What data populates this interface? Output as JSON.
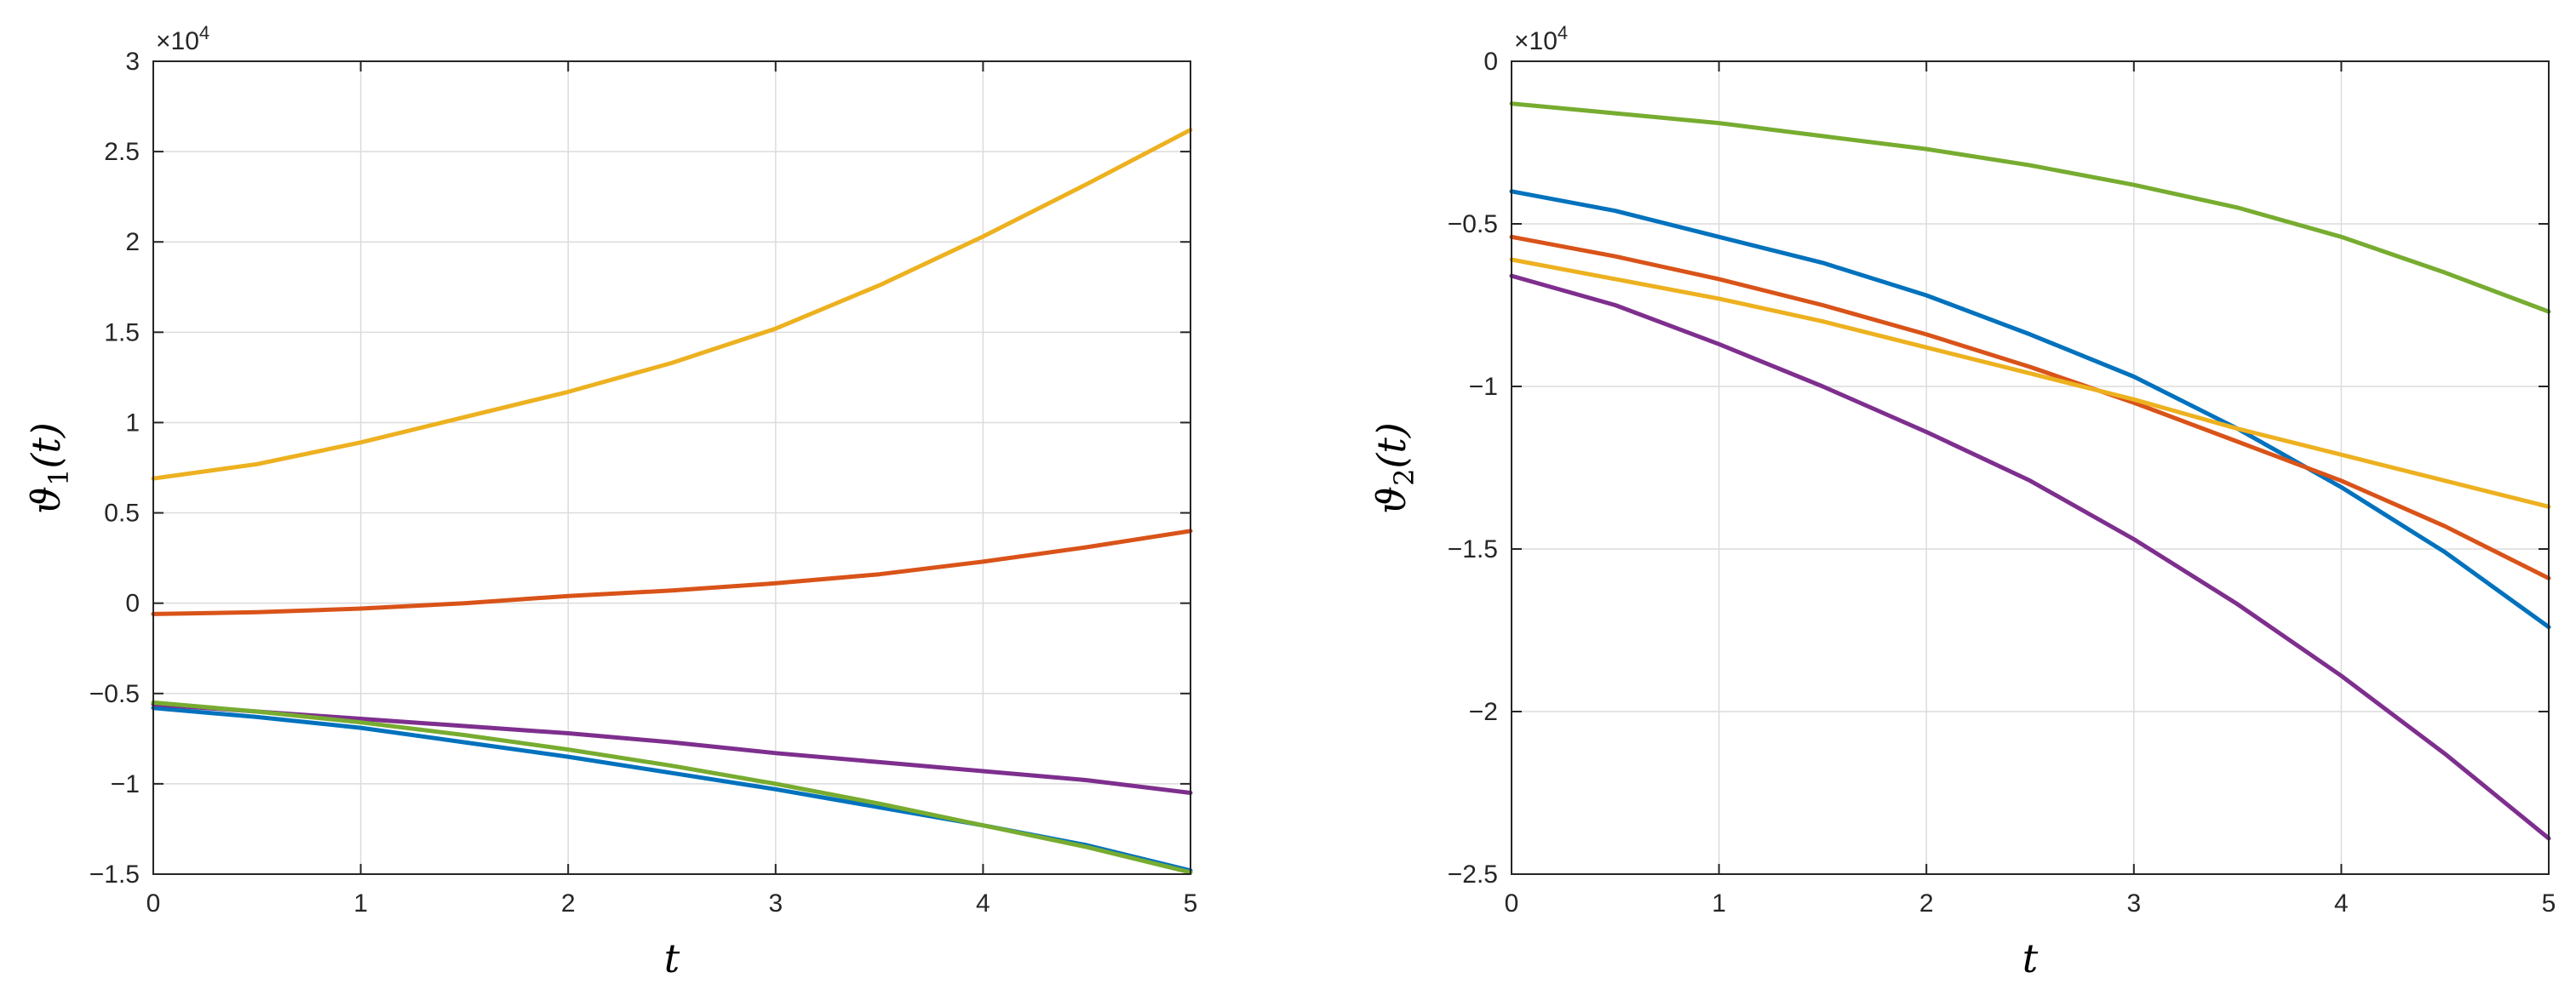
{
  "chart_data": [
    {
      "type": "line",
      "title": "",
      "xlabel": "t",
      "ylabel": "ϑ_1(t)",
      "ylabel_main": "ϑ",
      "ylabel_sub": "1",
      "ylabel_tail": "(t)",
      "xlim": [
        0,
        5
      ],
      "ylim": [
        -15000,
        30000
      ],
      "grid": true,
      "exponent_label": "×10",
      "exponent_power": "4",
      "xticks": [
        0,
        1,
        2,
        3,
        4,
        5
      ],
      "xtick_labels": [
        "0",
        "1",
        "2",
        "3",
        "4",
        "5"
      ],
      "yticks": [
        -15000,
        -10000,
        -5000,
        0,
        5000,
        10000,
        15000,
        20000,
        25000,
        30000
      ],
      "ytick_labels": [
        "−1.5",
        "−1",
        "−0.5",
        "0",
        "0.5",
        "1",
        "1.5",
        "2",
        "2.5",
        "3"
      ],
      "x": [
        0,
        0.5,
        1,
        1.5,
        2,
        2.5,
        3,
        3.5,
        4,
        4.5,
        5
      ],
      "series": [
        {
          "name": "series 1",
          "color": "#0072BD",
          "values": [
            -5800,
            -6300,
            -6900,
            -7700,
            -8500,
            -9400,
            -10300,
            -11300,
            -12300,
            -13400,
            -14800
          ]
        },
        {
          "name": "series 2",
          "color": "#D95319",
          "values": [
            -600,
            -500,
            -300,
            0,
            400,
            700,
            1100,
            1600,
            2300,
            3100,
            4000
          ]
        },
        {
          "name": "series 3",
          "color": "#EDB120",
          "values": [
            6900,
            7700,
            8900,
            10300,
            11700,
            13300,
            15200,
            17600,
            20300,
            23200,
            26200
          ]
        },
        {
          "name": "series 4",
          "color": "#7E2F8E",
          "values": [
            -5600,
            -6000,
            -6400,
            -6800,
            -7200,
            -7700,
            -8300,
            -8800,
            -9300,
            -9800,
            -10500
          ]
        },
        {
          "name": "series 5",
          "color": "#77AC30",
          "values": [
            -5500,
            -6000,
            -6600,
            -7300,
            -8100,
            -9000,
            -10000,
            -11100,
            -12300,
            -13500,
            -14900
          ]
        }
      ]
    },
    {
      "type": "line",
      "title": "",
      "xlabel": "t",
      "ylabel": "ϑ_2(t)",
      "ylabel_main": "ϑ",
      "ylabel_sub": "2",
      "ylabel_tail": "(t)",
      "xlim": [
        0,
        5
      ],
      "ylim": [
        -25000,
        0
      ],
      "grid": true,
      "exponent_label": "×10",
      "exponent_power": "4",
      "xticks": [
        0,
        1,
        2,
        3,
        4,
        5
      ],
      "xtick_labels": [
        "0",
        "1",
        "2",
        "3",
        "4",
        "5"
      ],
      "yticks": [
        -25000,
        -20000,
        -15000,
        -10000,
        -5000,
        0
      ],
      "ytick_labels": [
        "−2.5",
        "−2",
        "−1.5",
        "−1",
        "−0.5",
        "0"
      ],
      "x": [
        0,
        0.5,
        1,
        1.5,
        2,
        2.5,
        3,
        3.5,
        4,
        4.5,
        5
      ],
      "series": [
        {
          "name": "series 1",
          "color": "#0072BD",
          "values": [
            -4000,
            -4600,
            -5400,
            -6200,
            -7200,
            -8400,
            -9700,
            -11300,
            -13100,
            -15100,
            -17400
          ]
        },
        {
          "name": "series 2",
          "color": "#D95319",
          "values": [
            -5400,
            -6000,
            -6700,
            -7500,
            -8400,
            -9400,
            -10500,
            -11700,
            -12900,
            -14300,
            -15900
          ]
        },
        {
          "name": "series 3",
          "color": "#EDB120",
          "values": [
            -6100,
            -6700,
            -7300,
            -8000,
            -8800,
            -9600,
            -10400,
            -11300,
            -12100,
            -12900,
            -13700
          ]
        },
        {
          "name": "series 4",
          "color": "#7E2F8E",
          "values": [
            -6600,
            -7500,
            -8700,
            -10000,
            -11400,
            -12900,
            -14700,
            -16700,
            -18900,
            -21300,
            -23900
          ]
        },
        {
          "name": "series 5",
          "color": "#77AC30",
          "values": [
            -1300,
            -1600,
            -1900,
            -2300,
            -2700,
            -3200,
            -3800,
            -4500,
            -5400,
            -6500,
            -7700
          ]
        }
      ]
    }
  ]
}
